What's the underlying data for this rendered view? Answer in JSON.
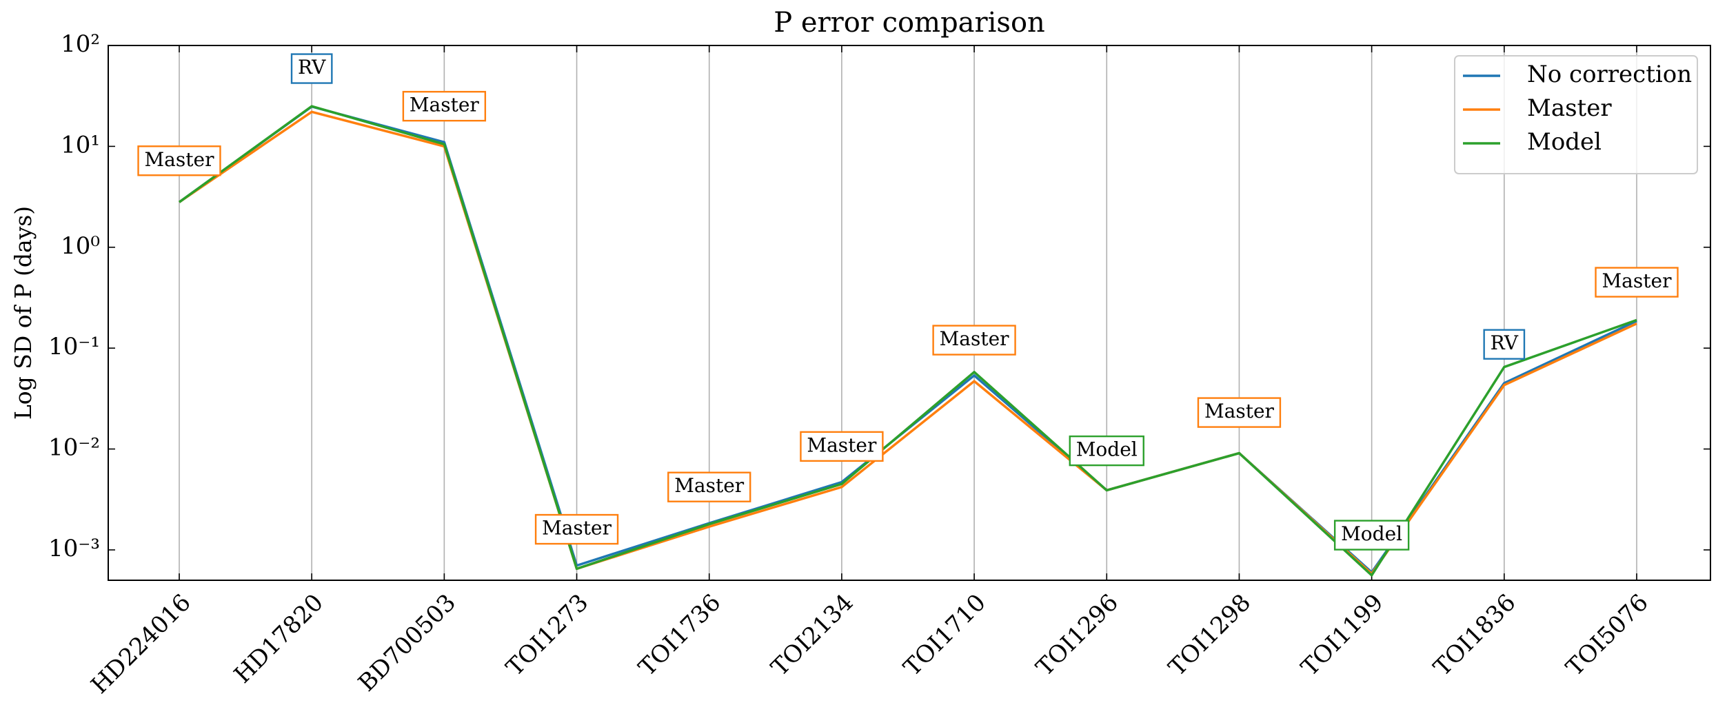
{
  "chart_data": {
    "type": "line",
    "title": "P error comparison",
    "ylabel": "Log SD of P (days)",
    "categories": [
      "HD224016",
      "HD17820",
      "BD700503",
      "TOI1273",
      "TOI1736",
      "TOI2134",
      "TOI1710",
      "TOI1296",
      "TOI1298",
      "TOI1199",
      "TOI1836",
      "TOI5076"
    ],
    "series": [
      {
        "name": "No correction",
        "color": "#1f77b4",
        "values": [
          2.8,
          24.8,
          11,
          0.0007,
          0.00184,
          0.0047,
          0.0536,
          0.0039,
          0.0091,
          0.0006,
          0.045,
          0.186
        ]
      },
      {
        "name": "Master",
        "color": "#ff7f0e",
        "values": [
          2.8,
          22,
          10,
          0.00065,
          0.0017,
          0.0042,
          0.047,
          0.0039,
          0.0091,
          0.00058,
          0.043,
          0.175
        ]
      },
      {
        "name": "Model",
        "color": "#2ca02c",
        "values": [
          2.8,
          25,
          10.5,
          0.00065,
          0.0018,
          0.0045,
          0.058,
          0.0039,
          0.0091,
          0.00056,
          0.065,
          0.19
        ]
      }
    ],
    "annotations": [
      {
        "text": "Master",
        "category": 0,
        "y": 7.2,
        "color": "#ff7f0e"
      },
      {
        "text": "RV",
        "category": 1,
        "y": 59,
        "color": "#1f77b4"
      },
      {
        "text": "Master",
        "category": 2,
        "y": 25,
        "color": "#ff7f0e"
      },
      {
        "text": "Master",
        "category": 3,
        "y": 0.0016,
        "color": "#ff7f0e"
      },
      {
        "text": "Master",
        "category": 4,
        "y": 0.0042,
        "color": "#ff7f0e"
      },
      {
        "text": "Master",
        "category": 5,
        "y": 0.0106,
        "color": "#ff7f0e"
      },
      {
        "text": "Master",
        "category": 6,
        "y": 0.12,
        "color": "#ff7f0e"
      },
      {
        "text": "Model",
        "category": 7,
        "y": 0.0096,
        "color": "#2ca02c"
      },
      {
        "text": "Master",
        "category": 8,
        "y": 0.023,
        "color": "#ff7f0e"
      },
      {
        "text": "Model",
        "category": 9,
        "y": 0.0014,
        "color": "#2ca02c"
      },
      {
        "text": "RV",
        "category": 10,
        "y": 0.109,
        "color": "#1f77b4"
      },
      {
        "text": "Master",
        "category": 11,
        "y": 0.45,
        "color": "#ff7f0e"
      }
    ],
    "ylim": [
      0.0005,
      100
    ],
    "log_y": true,
    "yticks": [
      {
        "value": 0.001,
        "label": "10⁻³"
      },
      {
        "value": 0.01,
        "label": "10⁻²"
      },
      {
        "value": 0.1,
        "label": "10⁻¹"
      },
      {
        "value": 1,
        "label": "10⁰"
      },
      {
        "value": 10,
        "label": "10¹"
      },
      {
        "value": 100,
        "label": "10²"
      }
    ],
    "grid": "x",
    "legend": "upper right"
  }
}
